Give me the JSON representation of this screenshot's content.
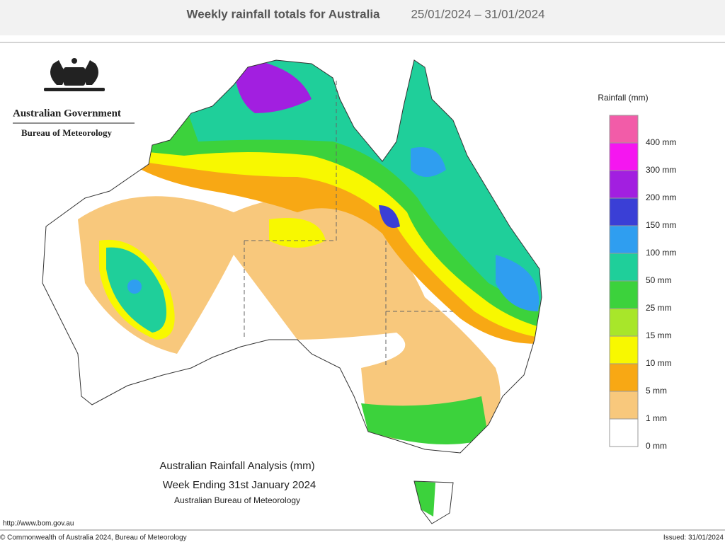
{
  "header": {
    "title": "Weekly rainfall totals for Australia",
    "dates": "25/01/2024 – 31/01/2024"
  },
  "logo": {
    "line1": "Australian Government",
    "line2": "Bureau of Meteorology"
  },
  "legend": {
    "title": "Rainfall (mm)",
    "labels": [
      "400 mm",
      "300 mm",
      "200 mm",
      "150 mm",
      "100 mm",
      "50 mm",
      "25 mm",
      "15 mm",
      "10 mm",
      "5 mm",
      "1 mm",
      "0 mm"
    ],
    "colors": [
      "#f25ca8",
      "#f516f0",
      "#a21fe0",
      "#3a3fd6",
      "#2f9ef0",
      "#1fcf9a",
      "#3cd23c",
      "#a8e62a",
      "#f8f800",
      "#f8a814",
      "#f8c87c",
      "#ffffff"
    ]
  },
  "caption": {
    "line1": "Australian Rainfall Analysis (mm)",
    "line2": "Week Ending 31st January 2024",
    "line3": "Australian Bureau of Meteorology"
  },
  "footer": {
    "url": "http://www.bom.gov.au",
    "copyright": "© Commonwealth of Australia 2024, Bureau of Meteorology",
    "issued": "Issued: 31/01/2024"
  }
}
